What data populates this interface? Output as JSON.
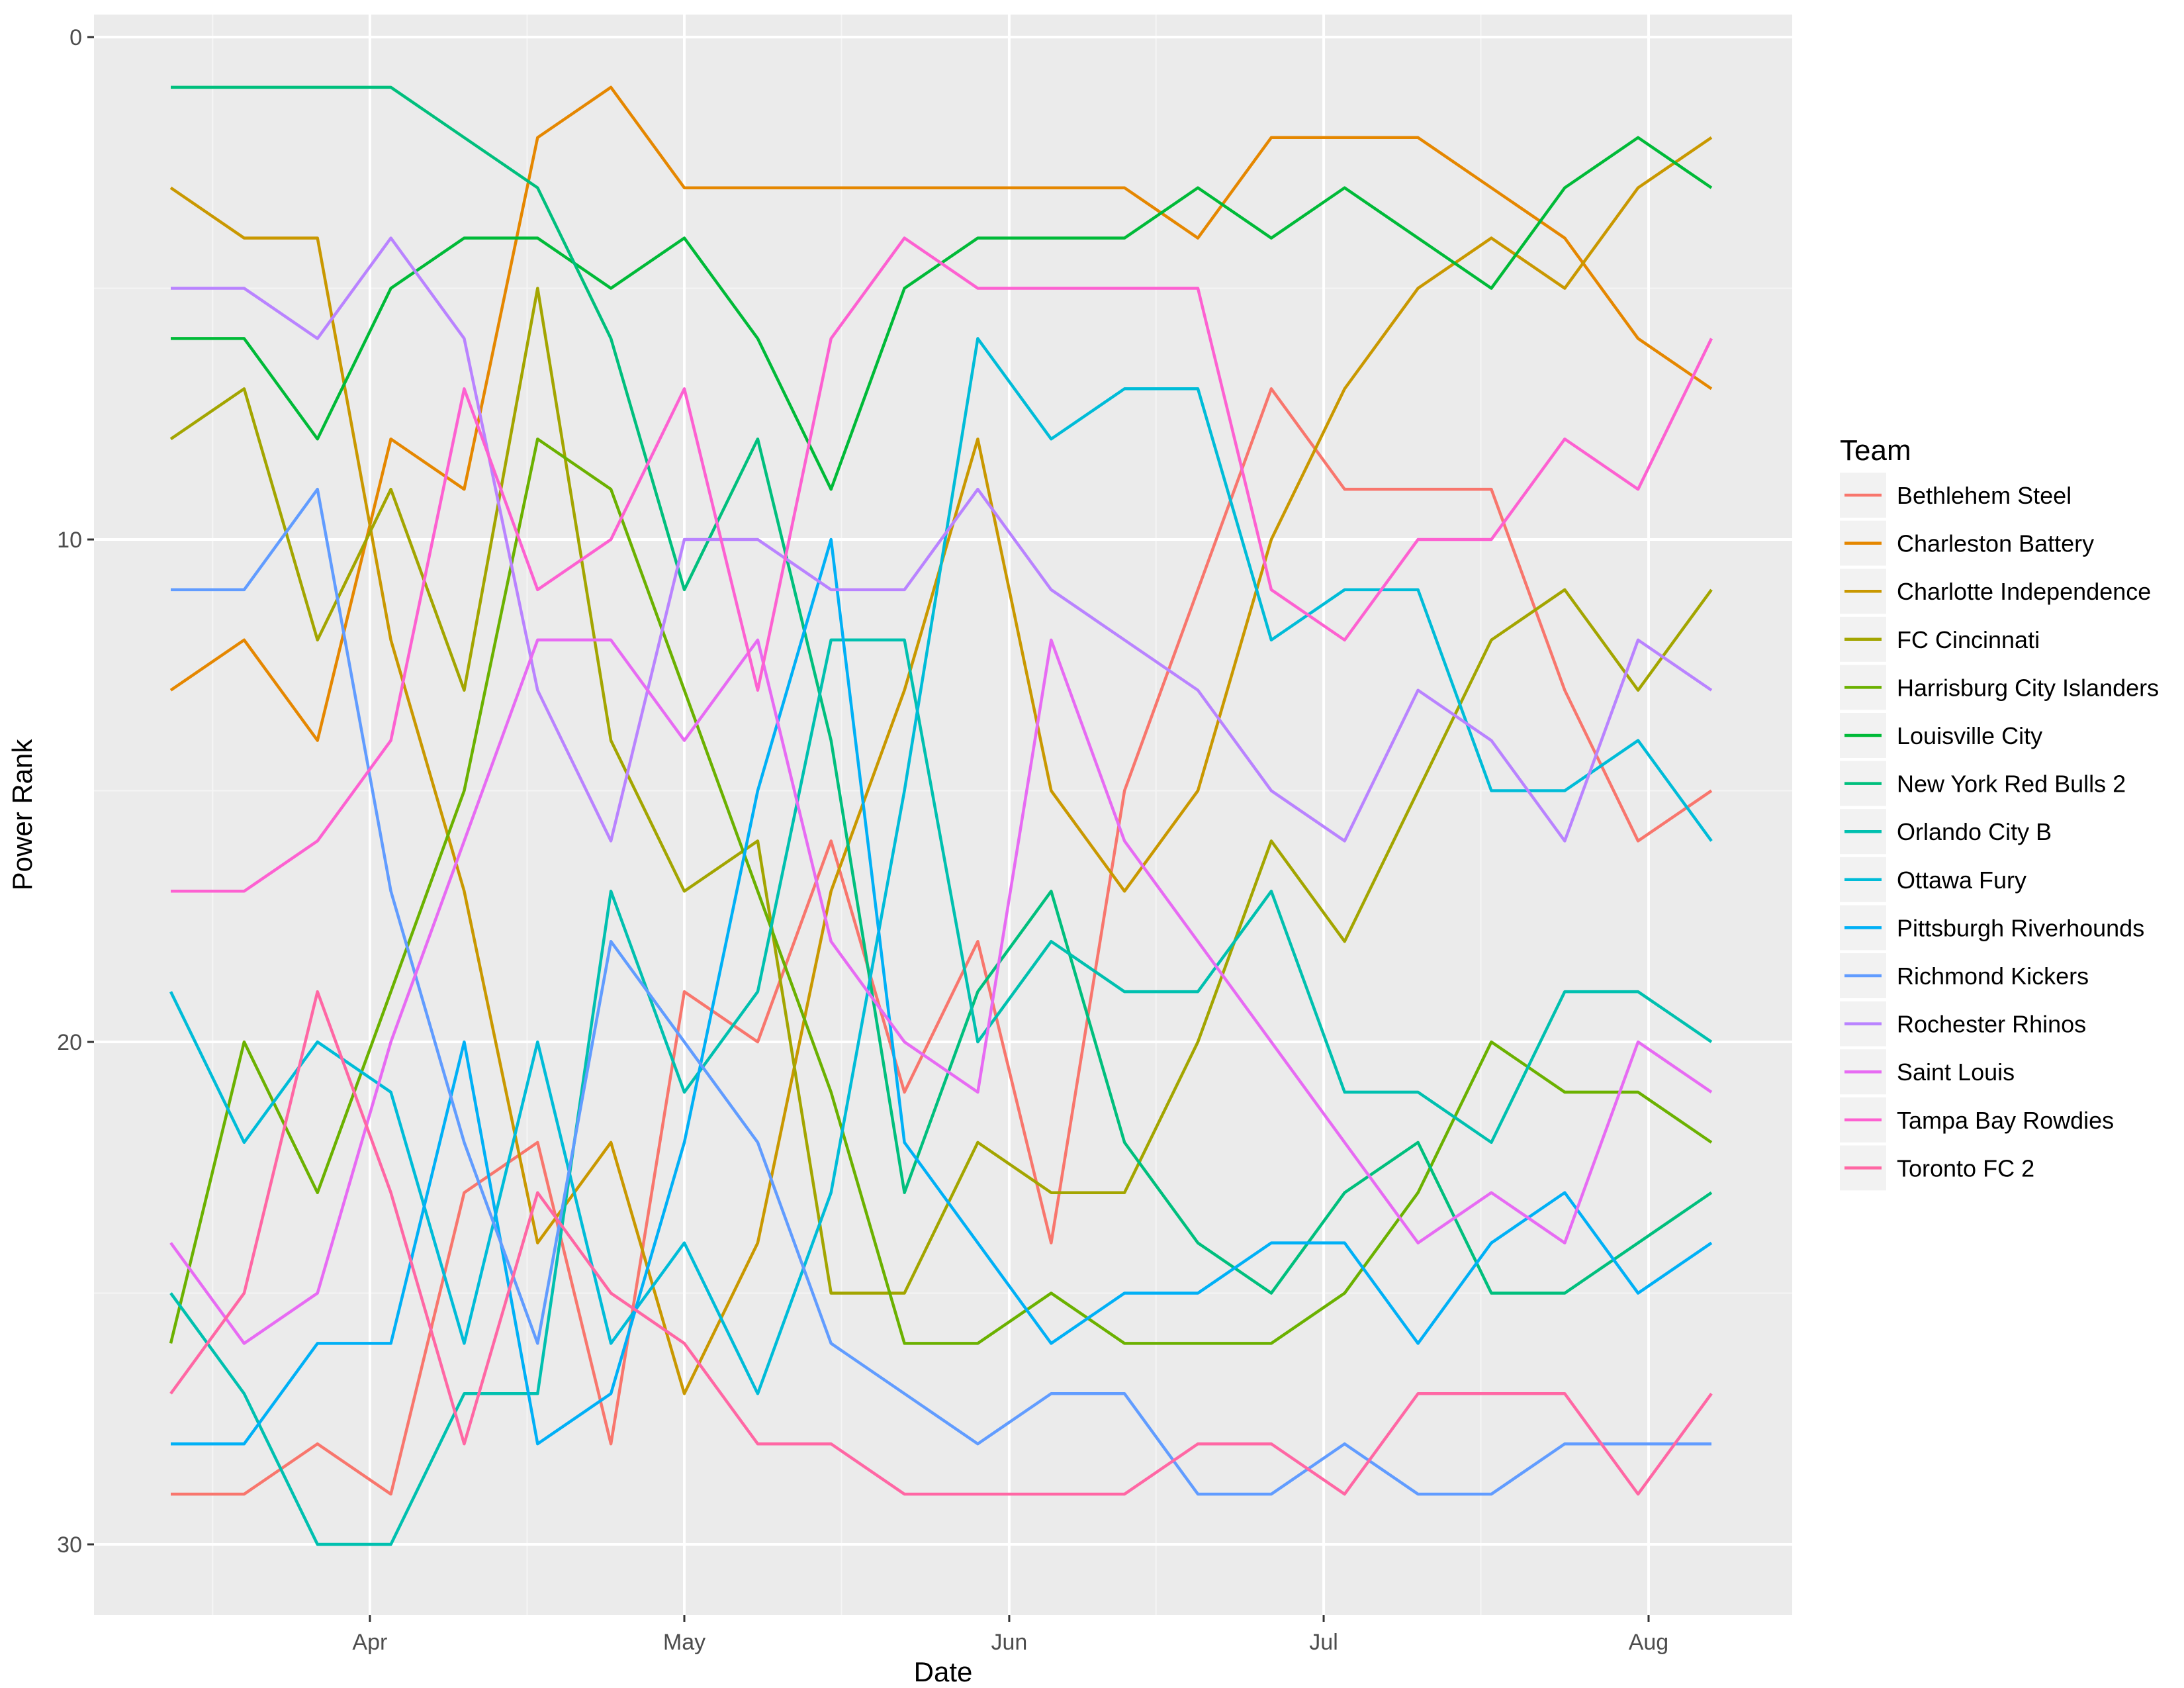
{
  "chart_data": {
    "type": "line",
    "title": "",
    "xlabel": "Date",
    "ylabel": "Power Rank",
    "x_tick_labels": [
      "Apr",
      "May",
      "Jun",
      "Jul",
      "Aug"
    ],
    "y_ticks": [
      0,
      10,
      20,
      30
    ],
    "ylim": [
      31.5,
      -0.7
    ],
    "y_reversed": true,
    "grid": true,
    "legend_title": "Team",
    "legend_position": "right",
    "x": [
      "2017-03-13",
      "2017-03-20",
      "2017-03-27",
      "2017-04-03",
      "2017-04-10",
      "2017-04-17",
      "2017-04-24",
      "2017-05-01",
      "2017-05-08",
      "2017-05-15",
      "2017-05-22",
      "2017-05-29",
      "2017-06-05",
      "2017-06-12",
      "2017-06-19",
      "2017-06-26",
      "2017-07-03",
      "2017-07-10",
      "2017-07-17",
      "2017-07-24",
      "2017-07-31",
      "2017-08-07"
    ],
    "series": [
      {
        "name": "Bethlehem Steel",
        "color": "#F8766D",
        "values": [
          29,
          29,
          28,
          29,
          23,
          22,
          28,
          19,
          20,
          16,
          21,
          18,
          24,
          15,
          11,
          7,
          9,
          9,
          9,
          13,
          16,
          15
        ]
      },
      {
        "name": "Charleston Battery",
        "color": "#E58700",
        "values": [
          13,
          12,
          14,
          8,
          9,
          2,
          1,
          3,
          3,
          3,
          3,
          3,
          3,
          3,
          4,
          2,
          2,
          2,
          3,
          4,
          6,
          7
        ]
      },
      {
        "name": "Charlotte Independence",
        "color": "#C99800",
        "values": [
          3,
          4,
          4,
          12,
          17,
          24,
          22,
          27,
          24,
          17,
          13,
          8,
          15,
          17,
          15,
          10,
          7,
          5,
          4,
          5,
          3,
          2
        ]
      },
      {
        "name": "FC Cincinnati",
        "color": "#A3A500",
        "values": [
          8,
          7,
          12,
          9,
          13,
          5,
          14,
          17,
          16,
          25,
          25,
          22,
          23,
          23,
          20,
          16,
          18,
          15,
          12,
          11,
          13,
          11
        ]
      },
      {
        "name": "Harrisburg City Islanders",
        "color": "#6BB100",
        "values": [
          26,
          20,
          23,
          19,
          15,
          8,
          9,
          13,
          17,
          21,
          26,
          26,
          25,
          26,
          26,
          26,
          25,
          23,
          20,
          21,
          21,
          22
        ]
      },
      {
        "name": "Louisville City",
        "color": "#00BA38",
        "values": [
          6,
          6,
          8,
          5,
          4,
          4,
          5,
          4,
          6,
          9,
          5,
          4,
          4,
          4,
          3,
          4,
          3,
          4,
          5,
          3,
          2,
          3
        ]
      },
      {
        "name": "New York Red Bulls 2",
        "color": "#00BF7D",
        "values": [
          1,
          1,
          1,
          1,
          2,
          3,
          6,
          11,
          8,
          14,
          23,
          19,
          17,
          22,
          24,
          25,
          23,
          22,
          25,
          25,
          24,
          23
        ]
      },
      {
        "name": "Orlando City B",
        "color": "#00C0AF",
        "values": [
          25,
          27,
          30,
          30,
          27,
          27,
          17,
          21,
          19,
          12,
          12,
          20,
          18,
          19,
          19,
          17,
          21,
          21,
          22,
          19,
          19,
          20
        ]
      },
      {
        "name": "Ottawa Fury",
        "color": "#00BCD8",
        "values": [
          19,
          22,
          20,
          21,
          26,
          20,
          26,
          24,
          27,
          23,
          15,
          6,
          8,
          7,
          7,
          12,
          11,
          11,
          15,
          15,
          14,
          16
        ]
      },
      {
        "name": "Pittsburgh Riverhounds",
        "color": "#00B0F6",
        "values": [
          28,
          28,
          26,
          26,
          20,
          28,
          27,
          22,
          15,
          10,
          22,
          24,
          26,
          25,
          25,
          24,
          24,
          26,
          24,
          23,
          25,
          24
        ]
      },
      {
        "name": "Richmond Kickers",
        "color": "#619CFF",
        "values": [
          11,
          11,
          9,
          17,
          22,
          26,
          18,
          20,
          22,
          26,
          27,
          28,
          27,
          27,
          29,
          29,
          28,
          29,
          29,
          28,
          28,
          28
        ]
      },
      {
        "name": "Rochester Rhinos",
        "color": "#B983FF",
        "values": [
          5,
          5,
          6,
          4,
          6,
          13,
          16,
          10,
          10,
          11,
          11,
          9,
          11,
          12,
          13,
          15,
          16,
          13,
          14,
          16,
          12,
          13
        ]
      },
      {
        "name": "Saint Louis",
        "color": "#E76BF3",
        "values": [
          24,
          26,
          25,
          20,
          16,
          12,
          12,
          14,
          12,
          18,
          20,
          21,
          12,
          16,
          18,
          20,
          22,
          24,
          23,
          24,
          20,
          21
        ]
      },
      {
        "name": "Tampa Bay Rowdies",
        "color": "#FD61D1",
        "values": [
          17,
          17,
          16,
          14,
          7,
          11,
          10,
          7,
          13,
          6,
          4,
          5,
          5,
          5,
          5,
          11,
          12,
          10,
          10,
          8,
          9,
          6
        ]
      },
      {
        "name": "Toronto FC 2",
        "color": "#FF67A4",
        "values": [
          27,
          25,
          19,
          23,
          28,
          23,
          25,
          26,
          28,
          28,
          29,
          29,
          29,
          29,
          28,
          28,
          29,
          27,
          27,
          27,
          29,
          27
        ]
      }
    ]
  }
}
